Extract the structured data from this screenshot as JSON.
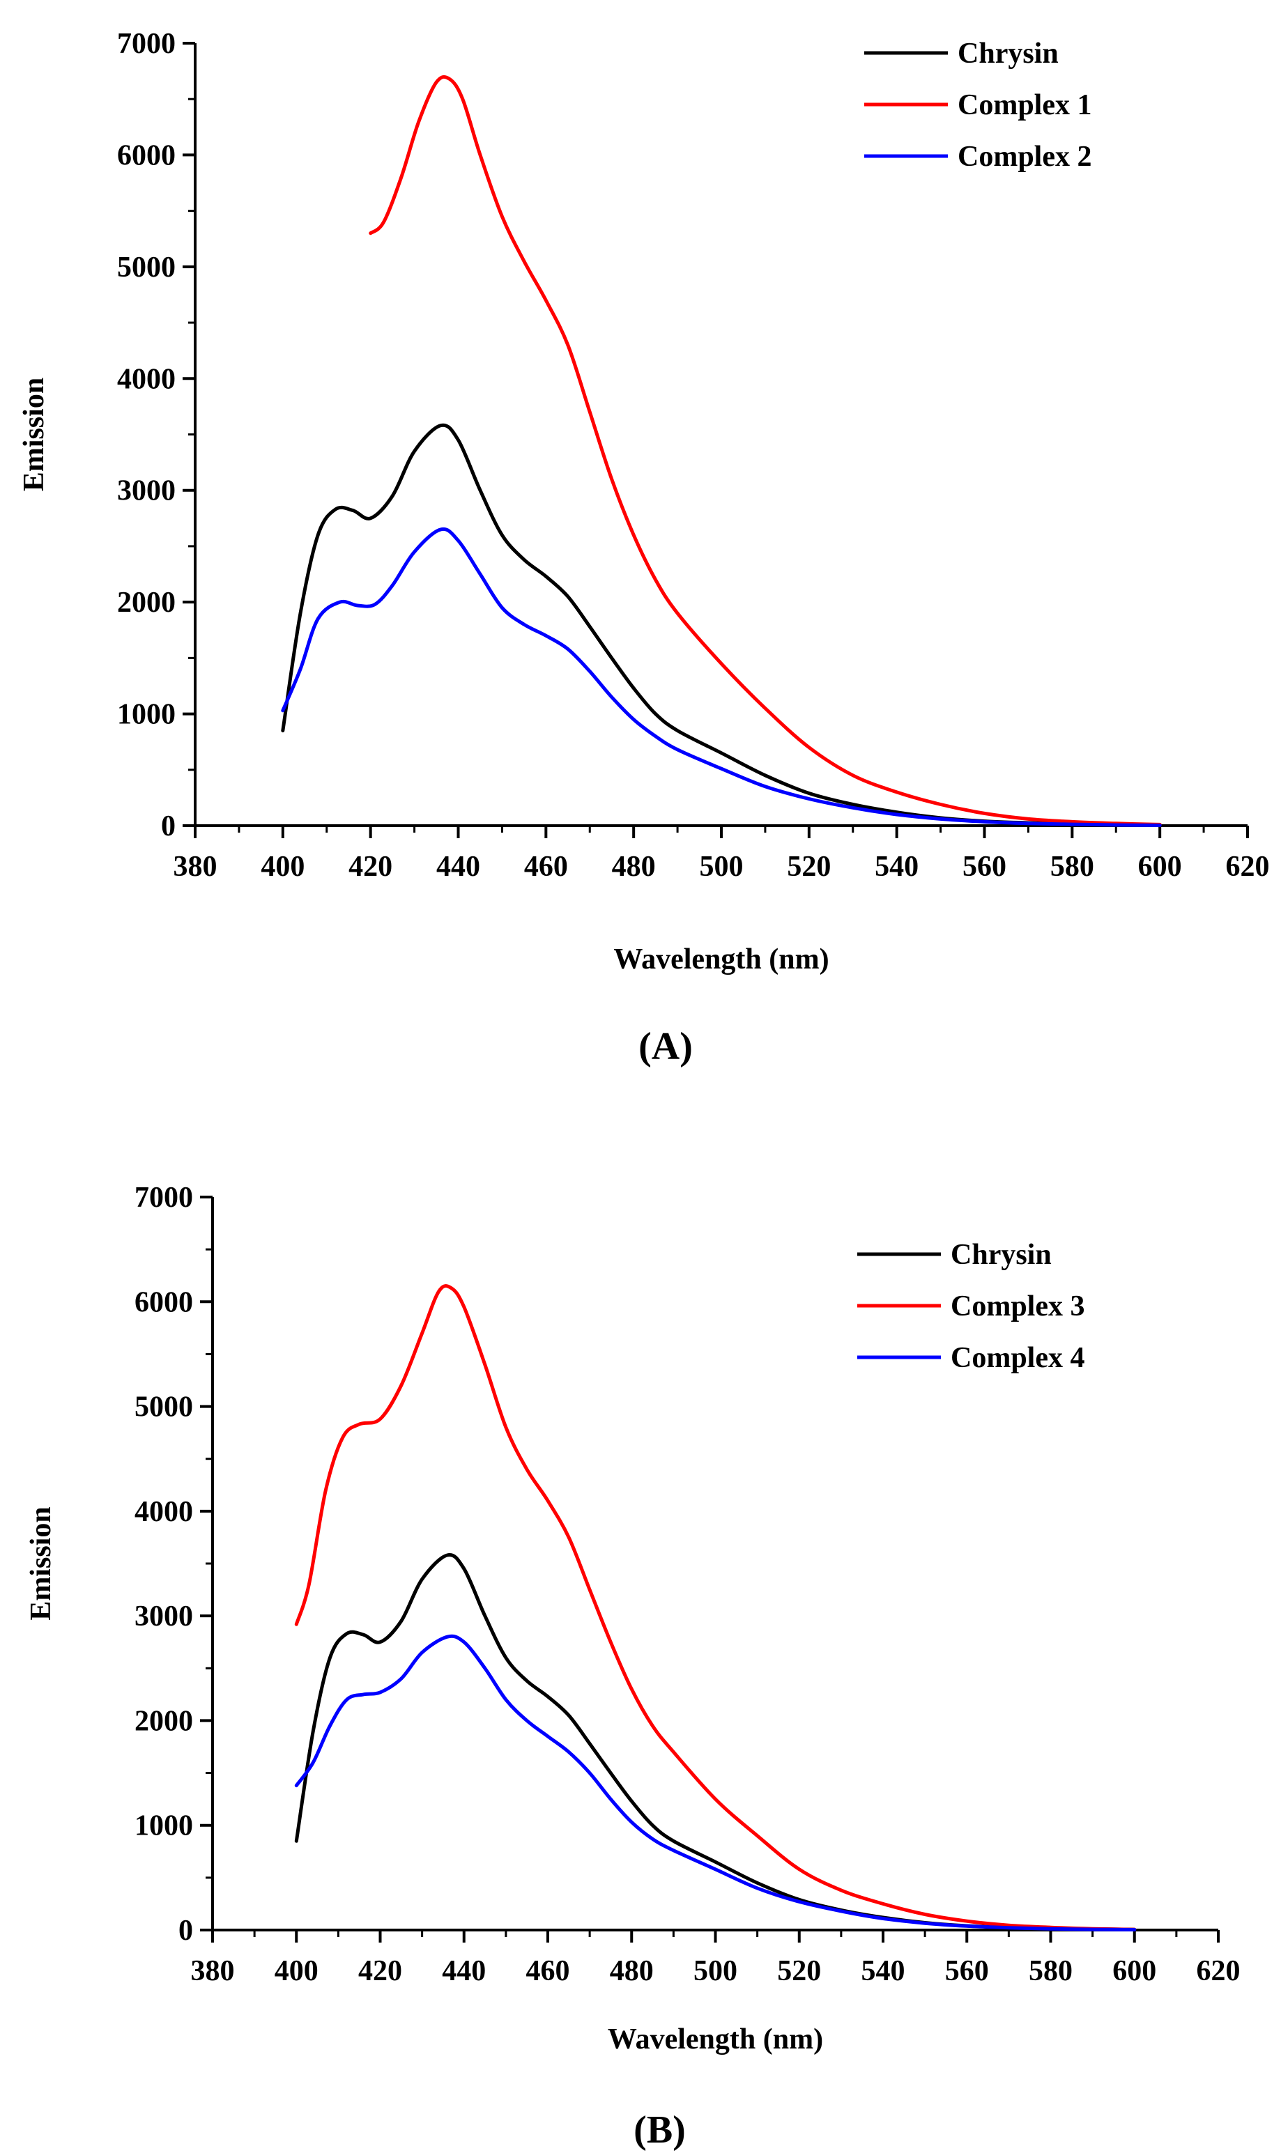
{
  "colors": {
    "black": "#000000",
    "red": "#ff0000",
    "blue": "#0000ff"
  },
  "chart_data": [
    {
      "type": "line",
      "panel_label": "(A)",
      "xlabel": "Wavelength (nm)",
      "ylabel": "Emission",
      "xlim": [
        380,
        620
      ],
      "ylim": [
        0,
        7000
      ],
      "xticks": [
        380,
        400,
        420,
        440,
        460,
        480,
        500,
        520,
        540,
        560,
        580,
        600,
        620
      ],
      "yticks": [
        0,
        1000,
        2000,
        3000,
        4000,
        5000,
        6000,
        7000
      ],
      "legend_position": "top-right",
      "series": [
        {
          "name": "Chrysin",
          "color": "#000000",
          "x": [
            400,
            404,
            408,
            412,
            416,
            420,
            425,
            430,
            436,
            440,
            445,
            450,
            455,
            460,
            465,
            470,
            475,
            480,
            485,
            490,
            500,
            510,
            520,
            530,
            540,
            550,
            560,
            570,
            580,
            590,
            600
          ],
          "y": [
            850,
            1900,
            2600,
            2830,
            2820,
            2750,
            2950,
            3350,
            3580,
            3450,
            3000,
            2600,
            2380,
            2230,
            2050,
            1780,
            1500,
            1230,
            1000,
            850,
            650,
            450,
            290,
            190,
            120,
            70,
            40,
            25,
            15,
            10,
            5
          ]
        },
        {
          "name": "Complex 1",
          "color": "#ff0000",
          "x": [
            420,
            423,
            427,
            431,
            435,
            438,
            441,
            445,
            450,
            455,
            460,
            465,
            470,
            475,
            480,
            485,
            490,
            500,
            510,
            520,
            530,
            540,
            550,
            560,
            570,
            580,
            590,
            600
          ],
          "y": [
            5300,
            5400,
            5800,
            6300,
            6650,
            6680,
            6500,
            6000,
            5450,
            5050,
            4700,
            4300,
            3700,
            3100,
            2600,
            2200,
            1900,
            1450,
            1050,
            700,
            450,
            300,
            190,
            110,
            60,
            35,
            20,
            10
          ]
        },
        {
          "name": "Complex 2",
          "color": "#0000ff",
          "x": [
            400,
            404,
            408,
            413,
            417,
            421,
            425,
            430,
            436,
            440,
            445,
            450,
            455,
            460,
            465,
            470,
            475,
            480,
            485,
            490,
            500,
            510,
            520,
            530,
            540,
            550,
            560,
            570,
            580,
            590,
            600
          ],
          "y": [
            1030,
            1400,
            1850,
            2000,
            1970,
            1980,
            2150,
            2450,
            2650,
            2550,
            2250,
            1950,
            1800,
            1700,
            1580,
            1380,
            1150,
            950,
            800,
            680,
            510,
            350,
            240,
            160,
            100,
            60,
            35,
            20,
            12,
            6,
            3
          ]
        }
      ]
    },
    {
      "type": "line",
      "panel_label": "(B)",
      "xlabel": "Wavelength (nm)",
      "ylabel": "Emission",
      "xlim": [
        380,
        620
      ],
      "ylim": [
        0,
        7000
      ],
      "xticks": [
        380,
        400,
        420,
        440,
        460,
        480,
        500,
        520,
        540,
        560,
        580,
        600,
        620
      ],
      "yticks": [
        0,
        1000,
        2000,
        3000,
        4000,
        5000,
        6000,
        7000
      ],
      "legend_position": "top-right",
      "series": [
        {
          "name": "Chrysin",
          "color": "#000000",
          "x": [
            400,
            404,
            408,
            412,
            416,
            420,
            425,
            430,
            436,
            440,
            445,
            450,
            455,
            460,
            465,
            470,
            475,
            480,
            485,
            490,
            500,
            510,
            520,
            530,
            540,
            550,
            560,
            570,
            580,
            590,
            600
          ],
          "y": [
            850,
            1900,
            2600,
            2830,
            2820,
            2750,
            2950,
            3350,
            3580,
            3450,
            3000,
            2600,
            2380,
            2230,
            2050,
            1780,
            1500,
            1230,
            1000,
            850,
            650,
            450,
            290,
            190,
            120,
            70,
            40,
            25,
            15,
            10,
            5
          ]
        },
        {
          "name": "Complex 3",
          "color": "#ff0000",
          "x": [
            400,
            403,
            407,
            411,
            415,
            420,
            425,
            430,
            434,
            437,
            440,
            445,
            450,
            455,
            460,
            465,
            470,
            475,
            480,
            485,
            490,
            500,
            510,
            520,
            530,
            540,
            550,
            560,
            570,
            580,
            590,
            600
          ],
          "y": [
            2920,
            3300,
            4200,
            4700,
            4830,
            4880,
            5200,
            5700,
            6100,
            6130,
            5950,
            5400,
            4800,
            4400,
            4100,
            3750,
            3250,
            2750,
            2300,
            1950,
            1700,
            1250,
            900,
            580,
            380,
            250,
            150,
            85,
            45,
            25,
            12,
            5
          ]
        },
        {
          "name": "Complex 4",
          "color": "#0000ff",
          "x": [
            400,
            404,
            408,
            412,
            416,
            420,
            425,
            430,
            436,
            440,
            445,
            450,
            455,
            460,
            465,
            470,
            475,
            480,
            485,
            490,
            500,
            510,
            520,
            530,
            540,
            550,
            560,
            570,
            580,
            590,
            600
          ],
          "y": [
            1380,
            1600,
            1950,
            2200,
            2250,
            2270,
            2400,
            2650,
            2800,
            2750,
            2500,
            2200,
            2000,
            1850,
            1700,
            1500,
            1250,
            1030,
            870,
            760,
            580,
            400,
            270,
            180,
            110,
            65,
            38,
            22,
            12,
            6,
            3
          ]
        }
      ]
    }
  ]
}
